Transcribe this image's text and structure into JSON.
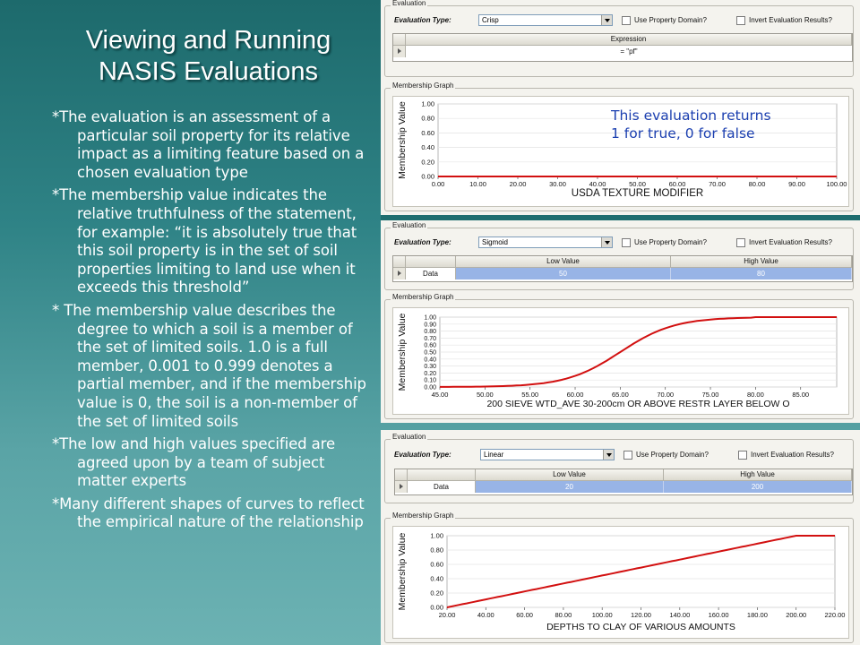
{
  "slide": {
    "title_line1": "Viewing and Running",
    "title_line2": "NASIS Evaluations",
    "bullets": [
      "*The evaluation is an assessment of a particular soil property for its relative impact as a limiting feature based on a chosen evaluation type",
      "*The membership value indicates the relative truthfulness of the statement, for example: “it is absolutely true that this soil property is in the set of soil properties limiting to land use when it exceeds this threshold”",
      "* The membership value describes the degree to which a soil is a member of the set of limited soils. 1.0 is a full member, 0.001 to 0.999 denotes a partial member, and if the membership value is 0, the soil is a non-member of the set of limited soils",
      "*The low and high values specified are agreed upon by a team of subject matter experts",
      "*Many different shapes of curves to reflect the empirical nature of the relationship"
    ]
  },
  "callout": {
    "line1": "This evaluation returns",
    "line2": "1 for true, 0 for false"
  },
  "panels": [
    {
      "evaluation_group": "Evaluation",
      "evaluation_type_label": "Evaluation Type:",
      "evaluation_type_value": "Crisp",
      "use_property_domain": "Use Property Domain?",
      "invert_results": "Invert Evaluation Results?",
      "grid_header": "Expression",
      "grid_value": "= \"pf\"",
      "graph_group": "Membership Graph",
      "y_axis_label": "Membership Value",
      "x_axis_label": "USDA TEXTURE MODIFIER"
    },
    {
      "evaluation_group": "Evaluation",
      "evaluation_type_label": "Evaluation Type:",
      "evaluation_type_value": "Sigmoid",
      "use_property_domain": "Use Property Domain?",
      "invert_results": "Invert Evaluation Results?",
      "col_low": "Low Value",
      "col_high": "High Value",
      "row_label": "Data",
      "low_value": "50",
      "high_value": "80",
      "graph_group": "Membership Graph",
      "y_axis_label": "Membership Value",
      "x_axis_label": "200 SIEVE WTD_AVE 30-200cm OR ABOVE RESTR LAYER BELOW O"
    },
    {
      "evaluation_group": "Evaluation",
      "evaluation_type_label": "Evaluation Type:",
      "evaluation_type_value": "Linear",
      "use_property_domain": "Use Property Domain?",
      "invert_results": "Invert Evaluation Results?",
      "col_low": "Low Value",
      "col_high": "High Value",
      "row_label": "Data",
      "low_value": "20",
      "high_value": "200",
      "graph_group": "Membership Graph",
      "y_axis_label": "Membership Value",
      "x_axis_label": "DEPTHS TO CLAY OF VARIOUS AMOUNTS"
    }
  ],
  "chart_data": [
    {
      "type": "line",
      "curve": "crisp",
      "x_ticks": [
        "0.00",
        "10.00",
        "20.00",
        "30.00",
        "40.00",
        "50.00",
        "60.00",
        "70.00",
        "80.00",
        "90.00",
        "100.00"
      ],
      "y_ticks": [
        "0.00",
        "0.20",
        "0.40",
        "0.60",
        "0.80",
        "1.00"
      ],
      "xlim": [
        0,
        100
      ],
      "ylim": [
        0,
        1
      ],
      "series": [
        {
          "x": [
            0,
            100
          ],
          "y": [
            0,
            0
          ]
        }
      ],
      "xlabel": "USDA TEXTURE MODIFIER",
      "ylabel": "Membership Value",
      "color": "#d21010"
    },
    {
      "type": "line",
      "curve": "sigmoid",
      "low": 50,
      "high": 80,
      "x_ticks": [
        "45.00",
        "50.00",
        "55.00",
        "60.00",
        "65.00",
        "70.00",
        "75.00",
        "80.00",
        "85.00"
      ],
      "y_ticks": [
        "0.00",
        "0.10",
        "0.20",
        "0.30",
        "0.40",
        "0.50",
        "0.60",
        "0.70",
        "0.80",
        "0.90",
        "1.00"
      ],
      "xlim": [
        45,
        89
      ],
      "ylim": [
        0,
        1
      ],
      "xlabel": "200 SIEVE WTD_AVE 30-200cm OR ABOVE RESTR LAYER BELOW O",
      "ylabel": "Membership Value",
      "color": "#d21010"
    },
    {
      "type": "line",
      "curve": "linear",
      "low": 20,
      "high": 200,
      "x_ticks": [
        "20.00",
        "40.00",
        "60.00",
        "80.00",
        "100.00",
        "120.00",
        "140.00",
        "160.00",
        "180.00",
        "200.00",
        "220.00"
      ],
      "y_ticks": [
        "0.00",
        "0.20",
        "0.40",
        "0.60",
        "0.80",
        "1.00"
      ],
      "xlim": [
        20,
        220
      ],
      "ylim": [
        0,
        1
      ],
      "xlabel": "DEPTHS TO CLAY OF VARIOUS AMOUNTS",
      "ylabel": "Membership Value",
      "color": "#d21010"
    }
  ]
}
